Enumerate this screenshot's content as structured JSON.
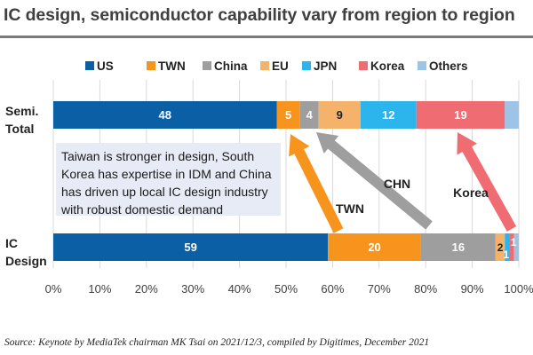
{
  "header": {
    "title": "IC design, semiconductor capability vary from region to region"
  },
  "chart_data": {
    "type": "bar",
    "orientation": "horizontal",
    "stacked": true,
    "categories": [
      "Semi.\nTotal",
      "IC\nDesign"
    ],
    "series": [
      {
        "name": "US",
        "color": "#0b5fa5",
        "values": [
          48,
          59
        ],
        "labels": [
          "48",
          "59"
        ]
      },
      {
        "name": "TWN",
        "color": "#f7941d",
        "values": [
          5,
          20
        ],
        "labels": [
          "5",
          "20"
        ]
      },
      {
        "name": "China",
        "color": "#9e9e9e",
        "values": [
          4,
          16
        ],
        "labels": [
          "4",
          "16"
        ]
      },
      {
        "name": "EU",
        "color": "#f5b26b",
        "values": [
          9,
          2
        ],
        "labels": [
          "9",
          "2"
        ]
      },
      {
        "name": "JPN",
        "color": "#2bb5ec",
        "values": [
          12,
          1
        ],
        "labels": [
          "12",
          "1"
        ]
      },
      {
        "name": "Korea",
        "color": "#ef6c73",
        "values": [
          19,
          1
        ],
        "labels": [
          "19",
          "1"
        ]
      },
      {
        "name": "Others",
        "color": "#9dc3e6",
        "values": [
          3,
          1
        ],
        "labels": [
          "",
          ""
        ]
      }
    ],
    "xlim": [
      0,
      100
    ],
    "xticks": [
      "0%",
      "10%",
      "20%",
      "30%",
      "40%",
      "50%",
      "60%",
      "70%",
      "80%",
      "90%",
      "100%"
    ],
    "legend_position": "top",
    "grid": true,
    "annotation": {
      "text_lines": [
        "Taiwan is stronger in design, South",
        "Korea has expertise in IDM and China",
        "has driven up local IC design industry",
        "with robust domestic demand"
      ]
    },
    "arrows": [
      {
        "label": "TWN",
        "color": "#f7941d"
      },
      {
        "label": "CHN",
        "color": "#9e9e9e"
      },
      {
        "label": "Korea",
        "color": "#ef6c73"
      }
    ]
  },
  "footer": {
    "source": "Source: Keynote by MediaTek chairman MK Tsai on 2021/12/3, compiled by Digitimes, December 2021"
  }
}
